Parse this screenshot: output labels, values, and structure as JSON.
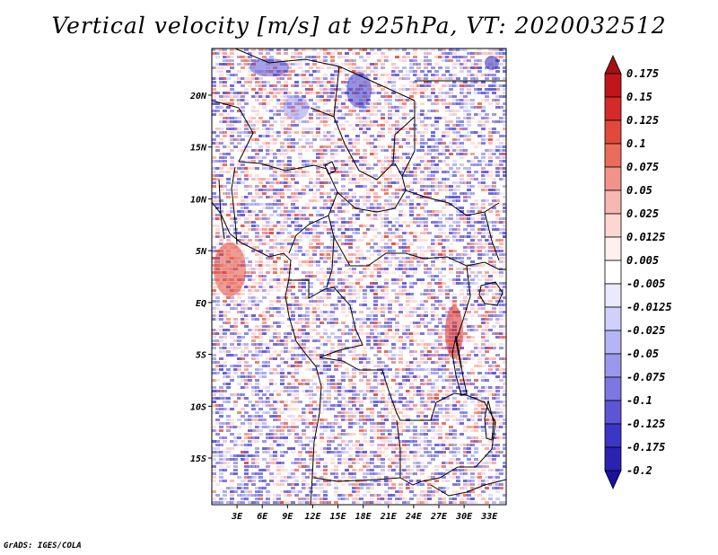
{
  "title": "Vertical velocity [m/s] at 925hPa, VT: 2020032512",
  "credit": "GrADS: IGES/COLA",
  "map": {
    "lon_range": [
      0,
      35
    ],
    "lat_range": [
      -19.5,
      24.5
    ],
    "x_ticks": [
      {
        "lon": 3,
        "label": "3E"
      },
      {
        "lon": 6,
        "label": "6E"
      },
      {
        "lon": 9,
        "label": "9E"
      },
      {
        "lon": 12,
        "label": "12E"
      },
      {
        "lon": 15,
        "label": "15E"
      },
      {
        "lon": 18,
        "label": "18E"
      },
      {
        "lon": 21,
        "label": "21E"
      },
      {
        "lon": 24,
        "label": "24E"
      },
      {
        "lon": 27,
        "label": "27E"
      },
      {
        "lon": 30,
        "label": "30E"
      },
      {
        "lon": 33,
        "label": "33E"
      }
    ],
    "y_ticks": [
      {
        "lat": 20,
        "label": "20N"
      },
      {
        "lat": 15,
        "label": "15N"
      },
      {
        "lat": 10,
        "label": "10N"
      },
      {
        "lat": 5,
        "label": "5N"
      },
      {
        "lat": 0,
        "label": "EQ"
      },
      {
        "lat": -5,
        "label": "5S"
      },
      {
        "lat": -10,
        "label": "10S"
      },
      {
        "lat": -15,
        "label": "15S"
      }
    ],
    "field_pattern": "speckled red/blue vertical velocity over central Africa"
  },
  "colorbar": {
    "levels": [
      "0.175",
      "0.15",
      "0.125",
      "0.1",
      "0.075",
      "0.05",
      "0.025",
      "0.0125",
      "0.005",
      "-0.005",
      "-0.0125",
      "-0.025",
      "-0.05",
      "-0.075",
      "-0.1",
      "-0.125",
      "-0.175",
      "-0.2"
    ],
    "colors": [
      "#a50f15",
      "#c0161b",
      "#d42a28",
      "#e04a3c",
      "#ea6d5c",
      "#f2938a",
      "#f8b7b0",
      "#fcd6d1",
      "#fff0ee",
      "#ffffff",
      "#eaeaff",
      "#d0d0fb",
      "#b5b4f4",
      "#9a98ec",
      "#7c78e2",
      "#5c56d4",
      "#3c36c4",
      "#2a22b0",
      "#1a10a0"
    ]
  }
}
